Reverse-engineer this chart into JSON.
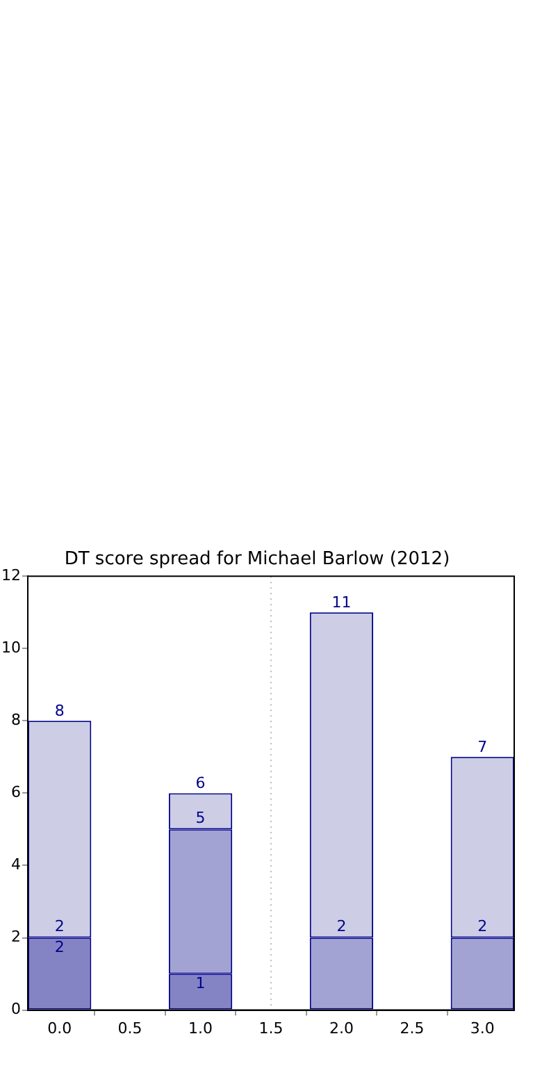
{
  "chart_data": {
    "type": "bar",
    "title": "DT score spread for Michael Barlow (2012)",
    "stacked": true,
    "totals": [
      "8",
      "6",
      "11",
      "7"
    ],
    "annotations": [
      {
        "text": "2",
        "x": 0,
        "y": 2
      },
      {
        "text": "5",
        "x": 1,
        "y": 5
      },
      {
        "text": "2",
        "x": 2,
        "y": 2
      },
      {
        "text": "2",
        "x": 3,
        "y": 2
      }
    ],
    "x": [
      0,
      1,
      2,
      3
    ],
    "series": [
      {
        "color": "#8484c4",
        "values": [
          2,
          1,
          0,
          0
        ],
        "value_labels": [
          "2",
          "1",
          null,
          null
        ]
      },
      {
        "color": "#a3a3d3",
        "values": [
          0,
          4,
          2,
          2
        ]
      },
      {
        "color": "#cdcde5",
        "values": [
          6,
          1,
          9,
          5
        ]
      }
    ],
    "xlim": [
      -0.225,
      3.225
    ],
    "xticks": [
      {
        "value": 0,
        "label": "0.0"
      },
      {
        "value": 0.5,
        "label": "0.5"
      },
      {
        "value": 1,
        "label": "1.0"
      },
      {
        "value": 1.5,
        "label": "1.5"
      },
      {
        "value": 2,
        "label": "2.0"
      },
      {
        "value": 2.5,
        "label": "2.5"
      },
      {
        "value": 3,
        "label": "3.0"
      }
    ],
    "ylim": [
      0,
      12
    ],
    "yticks": [
      0,
      2,
      4,
      6,
      8,
      10,
      12
    ],
    "ref_lines": [
      {
        "axis": "x",
        "value": 1.5,
        "color": "#bbbbbb",
        "line_style": "dotted"
      }
    ],
    "grid": false,
    "legend": false
  }
}
